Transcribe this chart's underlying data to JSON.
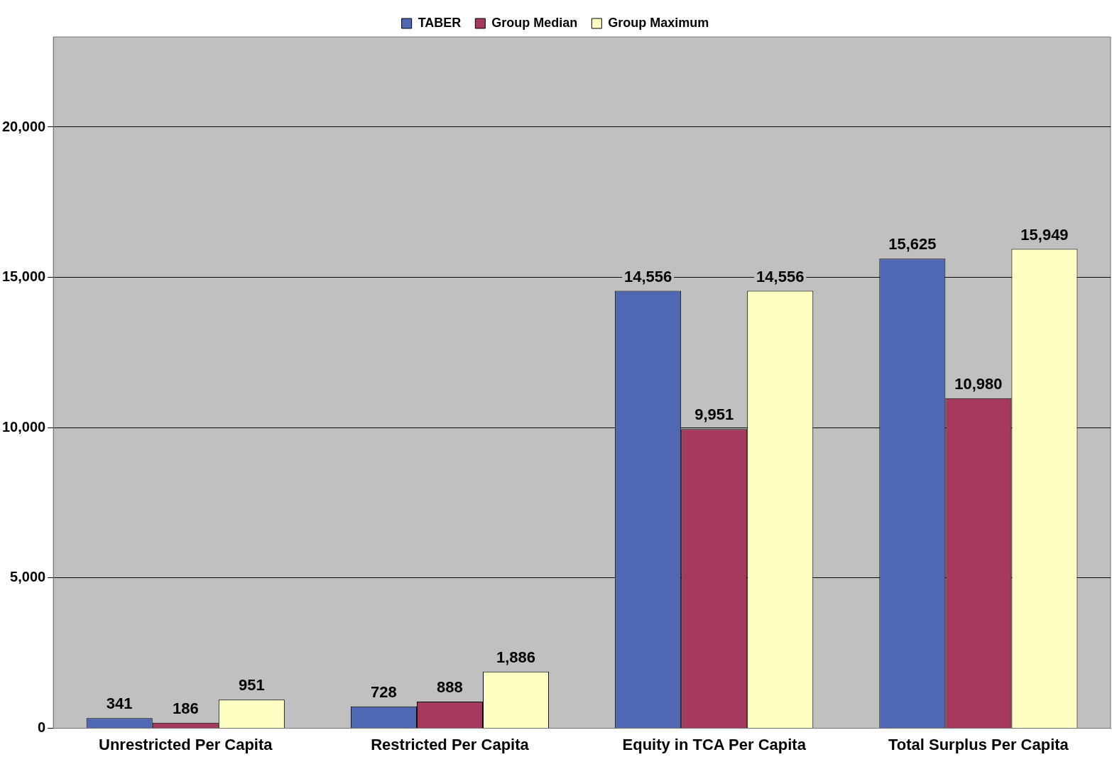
{
  "chart_data": {
    "type": "bar",
    "categories": [
      "Unrestricted Per Capita",
      "Restricted Per Capita",
      "Equity in TCA Per Capita",
      "Total Surplus Per Capita"
    ],
    "series": [
      {
        "name": "TABER",
        "color": "#5068b4",
        "values": [
          341,
          728,
          14556,
          15625
        ],
        "value_labels": [
          "341",
          "728",
          "14,556",
          "15,625"
        ]
      },
      {
        "name": "Group Median",
        "color": "#a63a5e",
        "values": [
          186,
          888,
          9951,
          10980
        ],
        "value_labels": [
          "186",
          "888",
          "9,951",
          "10,980"
        ]
      },
      {
        "name": "Group Maximum",
        "color": "#ffffc4",
        "values": [
          951,
          1886,
          14556,
          15949
        ],
        "value_labels": [
          "951",
          "1,886",
          "14,556",
          "15,949"
        ]
      }
    ],
    "ylim": [
      0,
      23000
    ],
    "yticks": [
      {
        "value": 0,
        "label": "0"
      },
      {
        "value": 5000,
        "label": "5,000"
      },
      {
        "value": 10000,
        "label": "10,000"
      },
      {
        "value": 15000,
        "label": "15,000"
      },
      {
        "value": 20000,
        "label": "20,000"
      }
    ],
    "grid": "y",
    "legend": "top"
  }
}
